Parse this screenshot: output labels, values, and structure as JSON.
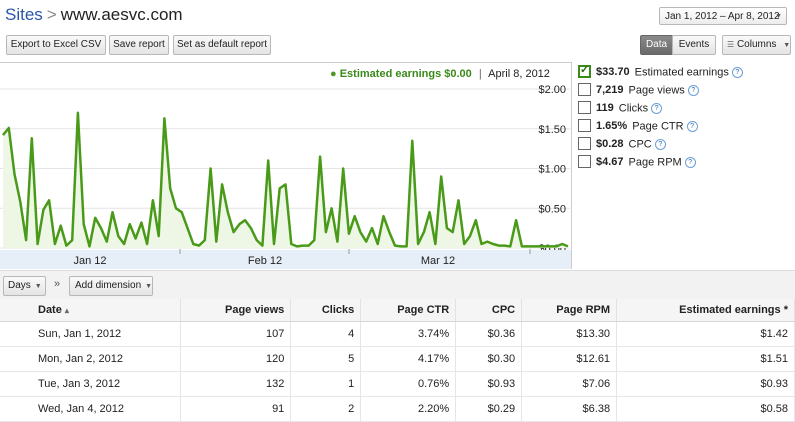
{
  "breadcrumb": {
    "root": "Sites",
    "separator": ">",
    "current": "www.aesvc.com"
  },
  "date_range": {
    "label": "Jan 1, 2012 – Apr 8, 2012"
  },
  "toolbar": {
    "export_label": "Export to Excel CSV",
    "save_report_label": "Save report",
    "set_default_label": "Set as default report",
    "data_label": "Data",
    "events_label": "Events",
    "columns_label": "Columns"
  },
  "chart_header": {
    "legend_text": "Estimated earnings $0.00",
    "date_text": "April 8, 2012"
  },
  "metrics": [
    {
      "value": "$33.70",
      "label": "Estimated earnings",
      "checked": true
    },
    {
      "value": "7,219",
      "label": "Page views",
      "checked": false
    },
    {
      "value": "119",
      "label": "Clicks",
      "checked": false
    },
    {
      "value": "1.65%",
      "label": "Page CTR",
      "checked": false
    },
    {
      "value": "$0.28",
      "label": "CPC",
      "checked": false
    },
    {
      "value": "$4.67",
      "label": "Page RPM",
      "checked": false
    }
  ],
  "chart_data": {
    "type": "area",
    "title": "",
    "xlabel": "",
    "ylabel": "",
    "series": [
      {
        "name": "Estimated earnings",
        "color": "#4a9a1a",
        "values": [
          1.42,
          1.51,
          0.93,
          0.58,
          0.1,
          1.38,
          0.05,
          0.48,
          0.6,
          0.05,
          0.28,
          0.03,
          0.1,
          1.7,
          0.3,
          0.02,
          0.38,
          0.25,
          0.08,
          0.45,
          0.15,
          0.05,
          0.3,
          0.12,
          0.32,
          0.05,
          0.6,
          0.15,
          1.63,
          0.75,
          0.5,
          0.45,
          0.25,
          0.05,
          0.03,
          0.1,
          1.0,
          0.08,
          0.8,
          0.45,
          0.2,
          0.3,
          0.35,
          0.25,
          0.1,
          0.03,
          1.1,
          0.05,
          0.75,
          0.8,
          0.05,
          0.02,
          0.03,
          0.03,
          0.1,
          1.15,
          0.2,
          0.5,
          0.08,
          1.0,
          0.18,
          0.4,
          0.2,
          0.08,
          0.25,
          0.05,
          0.4,
          0.2,
          0.03,
          0.02,
          0.02,
          1.35,
          0.05,
          0.2,
          0.45,
          0.05,
          0.9,
          0.25,
          0.2,
          0.6,
          0.05,
          0.15,
          0.35,
          0.05,
          0.08,
          0.05,
          0.03,
          0.03,
          0.02,
          0.35,
          0.02,
          0.02,
          0.02,
          0.02,
          0.02,
          0.02,
          0.02,
          0.05,
          0.02
        ]
      }
    ],
    "ylim": [
      0,
      2.0
    ],
    "y_ticks": [
      "$2.00",
      "$1.50",
      "$1.00",
      "$0.50",
      "$0.00"
    ],
    "x_ticks": [
      "Jan 12",
      "Feb 12",
      "Mar 12"
    ],
    "grid": true
  },
  "dimension_bar": {
    "days_label": "Days",
    "add_dimension_label": "Add dimension",
    "chevron": "»"
  },
  "table": {
    "headers": [
      "Date",
      "Page views",
      "Clicks",
      "Page CTR",
      "CPC",
      "Page RPM",
      "Estimated earnings"
    ],
    "date_sort_indicator": "▴",
    "earnings_sort_indicator": "*",
    "rows": [
      [
        "Sun, Jan 1, 2012",
        "107",
        "4",
        "3.74%",
        "$0.36",
        "$13.30",
        "$1.42"
      ],
      [
        "Mon, Jan 2, 2012",
        "120",
        "5",
        "4.17%",
        "$0.30",
        "$12.61",
        "$1.51"
      ],
      [
        "Tue, Jan 3, 2012",
        "132",
        "1",
        "0.76%",
        "$0.93",
        "$7.06",
        "$0.93"
      ],
      [
        "Wed, Jan 4, 2012",
        "91",
        "2",
        "2.20%",
        "$0.29",
        "$6.38",
        "$0.58"
      ]
    ]
  }
}
